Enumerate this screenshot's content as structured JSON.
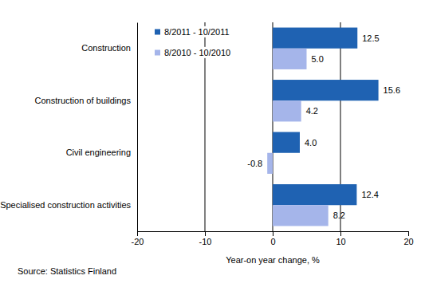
{
  "chart_data": {
    "type": "bar",
    "orientation": "horizontal",
    "categories": [
      "Construction",
      "Construction of buildings",
      "Civil engineering",
      "Specialised construction activities"
    ],
    "series": [
      {
        "name": "8/2011 - 10/2011",
        "color": "#1f62b2",
        "values": [
          12.5,
          15.6,
          4.0,
          12.4
        ],
        "value_labels": [
          "12.5",
          "15.6",
          "4.0",
          "12.4"
        ]
      },
      {
        "name": "8/2010 - 10/2010",
        "color": "#a5b5ea",
        "values": [
          5.0,
          4.2,
          -0.8,
          8.2
        ],
        "value_labels": [
          "5.0",
          "4.2",
          "-0.8",
          "8.2"
        ]
      }
    ],
    "x_label": "Year-on year change, %",
    "source": "Source: Statistics Finland",
    "xlim": [
      -20,
      20
    ],
    "xticks": [
      -20,
      -10,
      0,
      10,
      20
    ],
    "grid": true,
    "legend": "upper left",
    "data_labels": true
  }
}
